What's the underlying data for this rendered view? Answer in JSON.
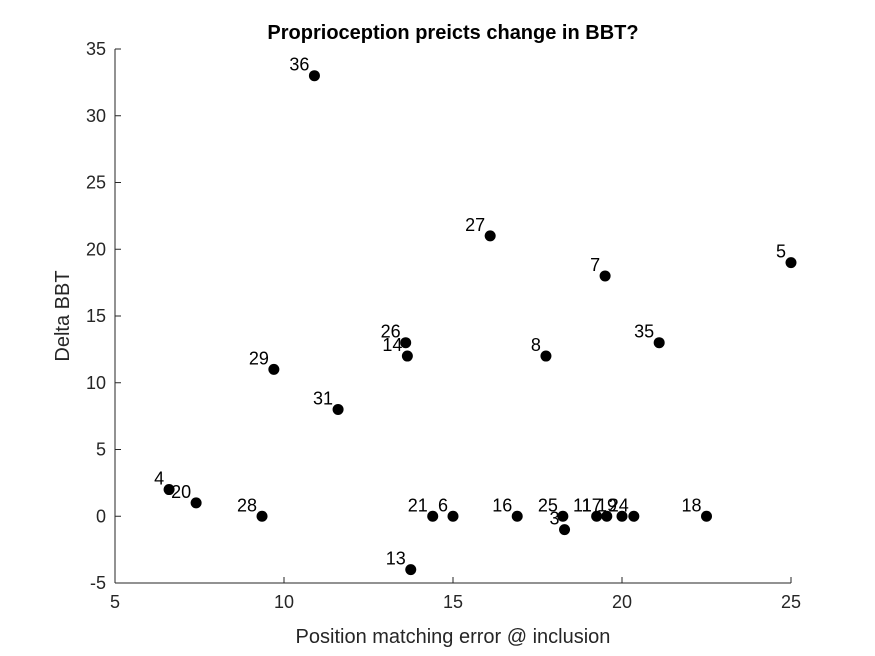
{
  "chart_data": {
    "type": "scatter",
    "title": "Proprioception preicts change in BBT?",
    "xlabel": "Position matching error @ inclusion",
    "ylabel": "Delta BBT",
    "xlim": [
      5,
      25
    ],
    "ylim": [
      -5,
      35
    ],
    "xticks": [
      "5",
      "10",
      "15",
      "20",
      "25"
    ],
    "yticks": [
      "-5",
      "0",
      "5",
      "10",
      "15",
      "20",
      "25",
      "30",
      "35"
    ],
    "grid": false,
    "marker_color": "#000000",
    "points": [
      {
        "label": "36",
        "x": 10.9,
        "y": 33
      },
      {
        "label": "27",
        "x": 16.1,
        "y": 21
      },
      {
        "label": "7",
        "x": 19.5,
        "y": 18
      },
      {
        "label": "5",
        "x": 25.0,
        "y": 19
      },
      {
        "label": "26",
        "x": 13.6,
        "y": 13
      },
      {
        "label": "14",
        "x": 13.65,
        "y": 12
      },
      {
        "label": "8",
        "x": 17.75,
        "y": 12
      },
      {
        "label": "35",
        "x": 21.1,
        "y": 13
      },
      {
        "label": "29",
        "x": 9.7,
        "y": 11
      },
      {
        "label": "31",
        "x": 11.6,
        "y": 8
      },
      {
        "label": "4",
        "x": 6.6,
        "y": 2
      },
      {
        "label": "20",
        "x": 7.4,
        "y": 1
      },
      {
        "label": "28",
        "x": 9.35,
        "y": 0
      },
      {
        "label": "21",
        "x": 14.4,
        "y": 0
      },
      {
        "label": "6",
        "x": 15.0,
        "y": 0
      },
      {
        "label": "16",
        "x": 16.9,
        "y": 0
      },
      {
        "label": "25",
        "x": 18.25,
        "y": 0
      },
      {
        "label": "3",
        "x": 18.3,
        "y": -1
      },
      {
        "label": "11",
        "x": 19.25,
        "y": 0
      },
      {
        "label": "17",
        "x": 19.55,
        "y": 0
      },
      {
        "label": "19",
        "x": 20.0,
        "y": 0
      },
      {
        "label": "24",
        "x": 20.35,
        "y": 0
      },
      {
        "label": "18",
        "x": 22.5,
        "y": 0
      },
      {
        "label": "13",
        "x": 13.75,
        "y": -4
      }
    ]
  }
}
